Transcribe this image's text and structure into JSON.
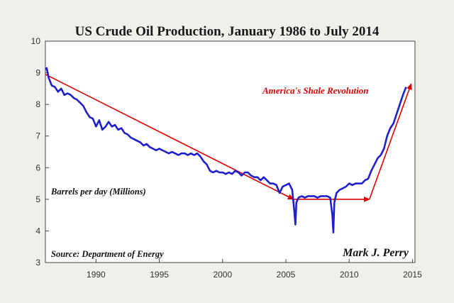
{
  "chart_data": {
    "type": "line",
    "title": "US Crude Oil Production, January 1986 to July 2014",
    "ylabel": "Barrels per day (Millions)",
    "source": "Source: Department of Energy",
    "signature": "Mark J. Perry",
    "xlim": [
      1986,
      2015.2
    ],
    "ylim": [
      3,
      10
    ],
    "x_ticks": [
      1990,
      1995,
      2000,
      2005,
      2010,
      2015
    ],
    "y_ticks": [
      3,
      4,
      5,
      6,
      7,
      8,
      9,
      10
    ],
    "grid": false,
    "series": [
      {
        "color": "#1f1fd0",
        "x": [
          1986.0,
          1986.1,
          1986.25,
          1986.5,
          1986.75,
          1987.0,
          1987.25,
          1987.5,
          1987.75,
          1988.0,
          1988.25,
          1988.5,
          1988.75,
          1989.0,
          1989.25,
          1989.5,
          1989.75,
          1990.0,
          1990.25,
          1990.5,
          1990.75,
          1991.0,
          1991.25,
          1991.5,
          1991.75,
          1992.0,
          1992.25,
          1992.5,
          1992.75,
          1993.0,
          1993.25,
          1993.5,
          1993.75,
          1994.0,
          1994.25,
          1994.5,
          1994.75,
          1995.0,
          1995.25,
          1995.5,
          1995.75,
          1996.0,
          1996.25,
          1996.5,
          1996.75,
          1997.0,
          1997.25,
          1997.5,
          1997.75,
          1998.0,
          1998.25,
          1998.5,
          1998.75,
          1999.0,
          1999.25,
          1999.5,
          1999.75,
          2000.0,
          2000.25,
          2000.5,
          2000.75,
          2001.0,
          2001.25,
          2001.5,
          2001.75,
          2002.0,
          2002.25,
          2002.5,
          2002.75,
          2003.0,
          2003.25,
          2003.5,
          2003.75,
          2004.0,
          2004.25,
          2004.5,
          2004.75,
          2005.0,
          2005.25,
          2005.5,
          2005.67,
          2005.75,
          2005.83,
          2006.0,
          2006.25,
          2006.5,
          2006.75,
          2007.0,
          2007.25,
          2007.5,
          2007.75,
          2008.0,
          2008.25,
          2008.5,
          2008.67,
          2008.75,
          2008.83,
          2009.0,
          2009.25,
          2009.5,
          2009.75,
          2010.0,
          2010.25,
          2010.5,
          2010.75,
          2011.0,
          2011.25,
          2011.5,
          2011.75,
          2012.0,
          2012.25,
          2012.5,
          2012.75,
          2013.0,
          2013.25,
          2013.5,
          2013.75,
          2014.0,
          2014.25,
          2014.5
        ],
        "y": [
          9.1,
          9.15,
          8.85,
          8.6,
          8.55,
          8.4,
          8.5,
          8.3,
          8.35,
          8.3,
          8.2,
          8.15,
          8.05,
          7.95,
          7.75,
          7.6,
          7.55,
          7.3,
          7.5,
          7.2,
          7.3,
          7.45,
          7.3,
          7.35,
          7.2,
          7.25,
          7.1,
          7.05,
          6.95,
          6.9,
          6.85,
          6.8,
          6.7,
          6.75,
          6.65,
          6.6,
          6.55,
          6.6,
          6.55,
          6.5,
          6.45,
          6.5,
          6.45,
          6.4,
          6.45,
          6.45,
          6.4,
          6.45,
          6.4,
          6.45,
          6.35,
          6.2,
          6.1,
          5.9,
          5.85,
          5.9,
          5.85,
          5.85,
          5.8,
          5.85,
          5.8,
          5.9,
          5.85,
          5.75,
          5.85,
          5.85,
          5.75,
          5.7,
          5.7,
          5.6,
          5.7,
          5.6,
          5.5,
          5.5,
          5.45,
          5.2,
          5.4,
          5.45,
          5.5,
          5.3,
          4.6,
          4.2,
          4.9,
          5.05,
          5.1,
          5.05,
          5.1,
          5.1,
          5.1,
          5.05,
          5.1,
          5.1,
          5.1,
          5.05,
          4.5,
          3.95,
          4.9,
          5.2,
          5.3,
          5.35,
          5.4,
          5.5,
          5.45,
          5.5,
          5.5,
          5.5,
          5.6,
          5.65,
          5.9,
          6.1,
          6.3,
          6.4,
          6.6,
          7.0,
          7.25,
          7.4,
          7.7,
          8.0,
          8.3,
          8.55
        ]
      }
    ],
    "annotations": [
      {
        "text": "America's Shale Revolution",
        "color": "#e00000"
      }
    ],
    "trend_arrows": [
      {
        "color": "#e00000",
        "from": [
          1986.0,
          8.95
        ],
        "to": [
          2005.6,
          5.0
        ]
      },
      {
        "color": "#e00000",
        "from": [
          2005.6,
          5.0
        ],
        "to": [
          2011.6,
          5.0
        ]
      },
      {
        "color": "#e00000",
        "from": [
          2011.6,
          5.0
        ],
        "to": [
          2014.9,
          8.65
        ]
      }
    ]
  }
}
